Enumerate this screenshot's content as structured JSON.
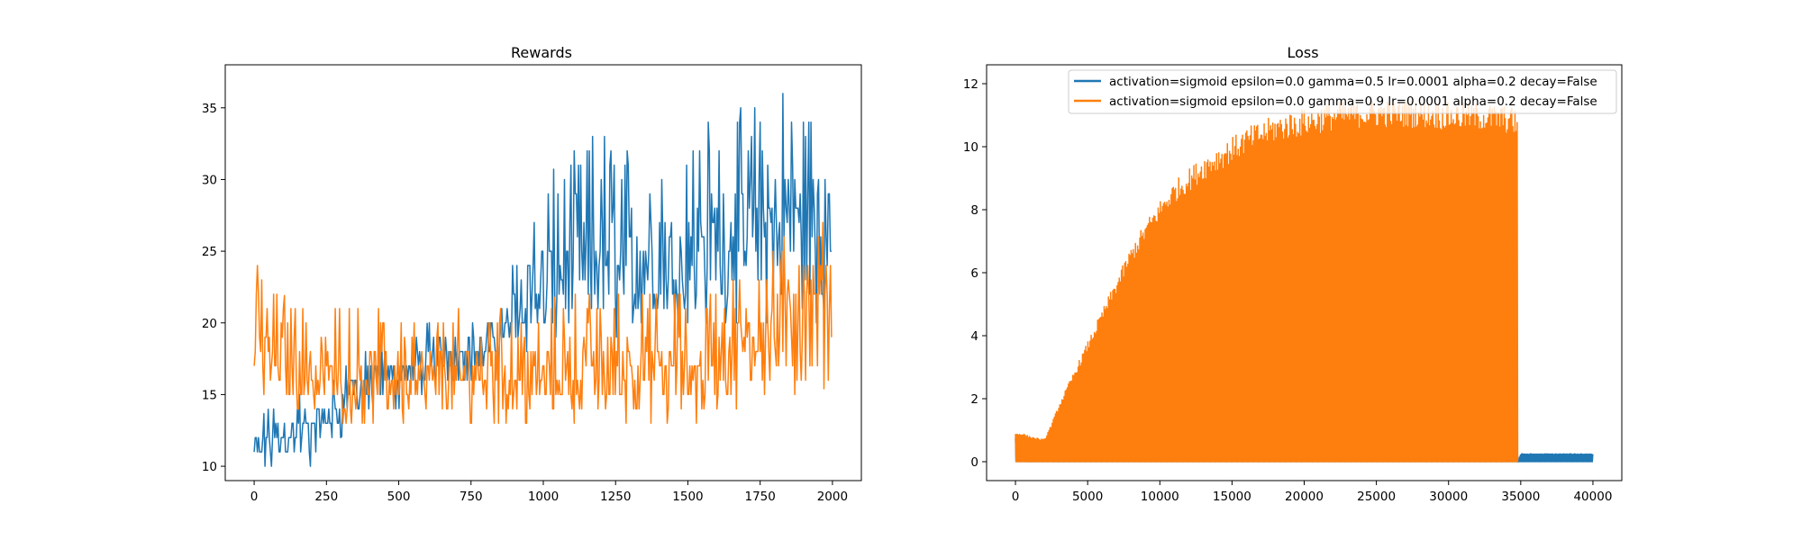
{
  "chart_data": [
    {
      "type": "line",
      "title": "Rewards",
      "xlabel": "",
      "ylabel": "",
      "xlim": [
        -100,
        2100
      ],
      "ylim": [
        9,
        38
      ],
      "xticks": [
        0,
        250,
        500,
        750,
        1000,
        1250,
        1500,
        1750,
        2000
      ],
      "yticks": [
        10,
        15,
        20,
        25,
        30,
        35
      ],
      "grid": false,
      "series": [
        {
          "color": "#1f77b4",
          "x": [
            0,
            50,
            100,
            150,
            200,
            250,
            300,
            350,
            400,
            450,
            500,
            550,
            600,
            650,
            700,
            750,
            800,
            850,
            900,
            950,
            1000,
            1050,
            1100,
            1150,
            1200,
            1250,
            1300,
            1350,
            1400,
            1450,
            1500,
            1550,
            1600,
            1650,
            1700,
            1750,
            1800,
            1850,
            1900,
            1950,
            2000
          ],
          "low": [
            10,
            10,
            10,
            10,
            10,
            11,
            12,
            13,
            13,
            14,
            14,
            15,
            15,
            16,
            16,
            16,
            16,
            17,
            18,
            18,
            18,
            19,
            19,
            19,
            19,
            19,
            19,
            20,
            20,
            20,
            20,
            20,
            20,
            20,
            20,
            20,
            20,
            20,
            20,
            20,
            21
          ],
          "high": [
            13,
            14,
            14,
            15,
            15,
            16,
            17,
            18,
            18,
            19,
            19,
            19,
            20,
            20,
            20,
            20,
            20,
            21,
            26,
            28,
            30,
            31,
            32,
            33,
            34,
            33,
            32,
            31,
            33,
            33,
            34,
            34,
            35,
            35,
            35,
            36,
            37,
            37,
            36,
            36,
            33
          ],
          "mid": [
            11.5,
            12,
            12,
            12.5,
            12.5,
            13.5,
            14.5,
            15.5,
            15.5,
            16.5,
            16.5,
            17,
            17.5,
            18,
            18,
            18,
            18,
            19,
            21,
            22,
            23,
            23,
            24,
            24,
            25,
            25,
            24,
            24,
            25,
            25,
            25,
            25,
            26,
            26,
            27,
            27,
            27,
            28,
            27,
            27,
            27
          ]
        },
        {
          "color": "#ff7f0e",
          "x": [
            0,
            50,
            100,
            150,
            200,
            250,
            300,
            350,
            400,
            450,
            500,
            550,
            600,
            650,
            700,
            750,
            800,
            850,
            900,
            950,
            1000,
            1050,
            1100,
            1150,
            1200,
            1250,
            1300,
            1350,
            1400,
            1450,
            1500,
            1550,
            1600,
            1650,
            1700,
            1750,
            1800,
            1850,
            1900,
            1950,
            2000
          ],
          "low": [
            15,
            15,
            15,
            14,
            13,
            13,
            13,
            13,
            13,
            13,
            13,
            13,
            13,
            13,
            13,
            13,
            13,
            13,
            13,
            13,
            13,
            13,
            13,
            13,
            13,
            13,
            13,
            13,
            13,
            13,
            13,
            13,
            14,
            14,
            14,
            15,
            15,
            15,
            15,
            15,
            16
          ],
          "high": [
            24,
            24,
            22,
            21,
            21,
            21,
            21,
            21,
            21,
            21,
            21,
            21,
            21,
            21,
            21,
            21,
            21,
            21,
            21,
            21,
            21,
            22,
            22,
            22,
            22,
            22,
            22,
            22,
            22,
            22,
            22,
            22,
            23,
            24,
            24,
            25,
            26,
            27,
            28,
            28,
            28
          ],
          "mid": [
            18,
            18,
            17.5,
            17,
            16.5,
            16.5,
            16.5,
            16.5,
            16.5,
            16.5,
            16.5,
            16.5,
            16.5,
            16.5,
            16.5,
            16.5,
            16.5,
            16.5,
            16.5,
            16.5,
            16.5,
            17,
            17,
            17,
            17,
            17,
            17,
            17,
            17,
            17,
            17,
            17.5,
            18,
            18.5,
            19,
            19.5,
            20,
            20.5,
            21,
            21,
            22
          ]
        }
      ]
    },
    {
      "type": "line",
      "title": "Loss",
      "xlabel": "",
      "ylabel": "",
      "xlim": [
        -2000,
        42000
      ],
      "ylim": [
        -0.6,
        12.6
      ],
      "xticks": [
        0,
        5000,
        10000,
        15000,
        20000,
        25000,
        30000,
        35000,
        40000
      ],
      "yticks": [
        0,
        2,
        4,
        6,
        8,
        10,
        12
      ],
      "grid": false,
      "legend_placement": "upper right",
      "series": [
        {
          "name": "activation=sigmoid epsilon=0.0 gamma=0.5 lr=0.0001 alpha=0.2 decay=False",
          "color": "#1f77b4",
          "x": [
            0,
            500,
            1000,
            2000,
            3000,
            5000,
            10000,
            20000,
            30000,
            34800,
            35000,
            40000
          ],
          "low": [
            0,
            0,
            0,
            0,
            0,
            0,
            0,
            0,
            0,
            0,
            0,
            0
          ],
          "high": [
            0.8,
            0.3,
            0.15,
            0.08,
            0.06,
            0.05,
            0.05,
            0.05,
            0.05,
            0.05,
            0.25,
            0.25
          ]
        },
        {
          "name": "activation=sigmoid epsilon=0.0 gamma=0.9 lr=0.0001 alpha=0.2 decay=False",
          "color": "#ff7f0e",
          "x": [
            0,
            500,
            1000,
            1500,
            2000,
            2500,
            3000,
            4000,
            5000,
            6000,
            7000,
            8000,
            9000,
            10000,
            11000,
            12000,
            13000,
            14000,
            15000,
            16000,
            17000,
            18000,
            19000,
            20000,
            22000,
            24000,
            26000,
            28000,
            30000,
            32000,
            34000,
            34800
          ],
          "low": [
            0,
            0,
            0,
            0,
            0,
            0,
            0,
            0,
            0,
            0,
            0,
            0,
            0,
            0,
            0,
            0,
            0,
            0,
            0,
            0,
            0,
            0,
            0,
            0,
            0,
            0,
            0,
            0,
            0,
            0,
            0,
            0
          ],
          "high": [
            0.9,
            0.9,
            0.8,
            0.75,
            0.7,
            1.2,
            1.8,
            2.8,
            3.8,
            4.8,
            5.8,
            6.8,
            7.6,
            8.3,
            8.9,
            9.3,
            9.7,
            10.0,
            10.3,
            10.6,
            10.8,
            11.0,
            11.1,
            11.2,
            11.4,
            11.5,
            11.5,
            11.5,
            11.4,
            11.4,
            11.3,
            11.2
          ]
        }
      ]
    }
  ]
}
